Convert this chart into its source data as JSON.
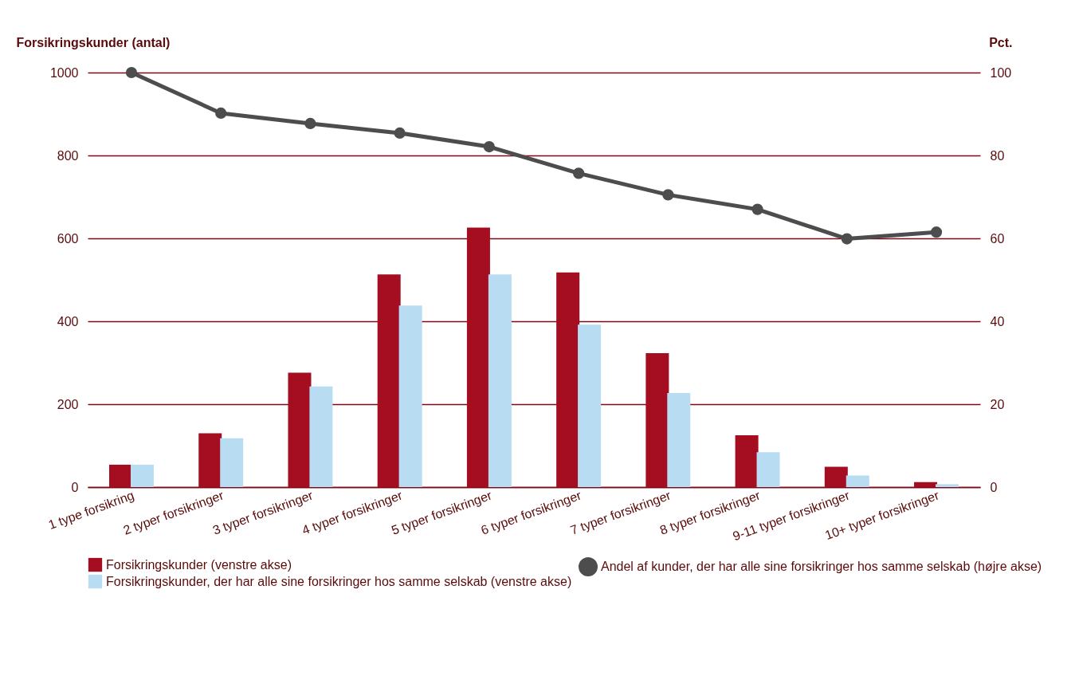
{
  "chart_data": {
    "type": "bar",
    "categories": [
      "1 type forsikring",
      "2 typer forsikringer",
      "3 typer forsikringer",
      "4 typer forsikringer",
      "5 typer forsikringer",
      "6 typer forsikringer",
      "7 typer forsikringer",
      "8 typer forsikringer",
      "9-11 typer forsikringer",
      "10+ typer forsikringer"
    ],
    "series": [
      {
        "name": "Forsikringskunder (venstre akse)",
        "color": "#a50d20",
        "values": [
          54,
          130,
          276,
          513,
          626,
          518,
          323,
          125,
          49,
          12
        ]
      },
      {
        "name": "Forsikringskunder, der har alle sine forsikringer hos samme selskab (venstre akse)",
        "color": "#b8ddf3",
        "values": [
          54,
          118,
          243,
          438,
          513,
          392,
          227,
          84,
          28,
          7
        ]
      },
      {
        "name": "Andel af kunder, der har alle sine forsikringer hos samme selskab (højre akse)",
        "type": "line",
        "axis": "y2",
        "color": "#4d4d4d",
        "values": [
          100,
          90.2,
          87.7,
          85.4,
          82.1,
          75.7,
          70.5,
          67.0,
          59.9,
          61.5
        ]
      }
    ],
    "ylabel": "Forsikringskunder (antal)",
    "y2label": "Pct.",
    "ylim": [
      0,
      1000
    ],
    "yticks": [
      0,
      200,
      400,
      600,
      800,
      1000
    ],
    "y2lim": [
      0,
      100
    ],
    "y2ticks": [
      0,
      20,
      40,
      60,
      80,
      100
    ],
    "grid": "y",
    "legend": "bottom",
    "marker": "circle"
  }
}
